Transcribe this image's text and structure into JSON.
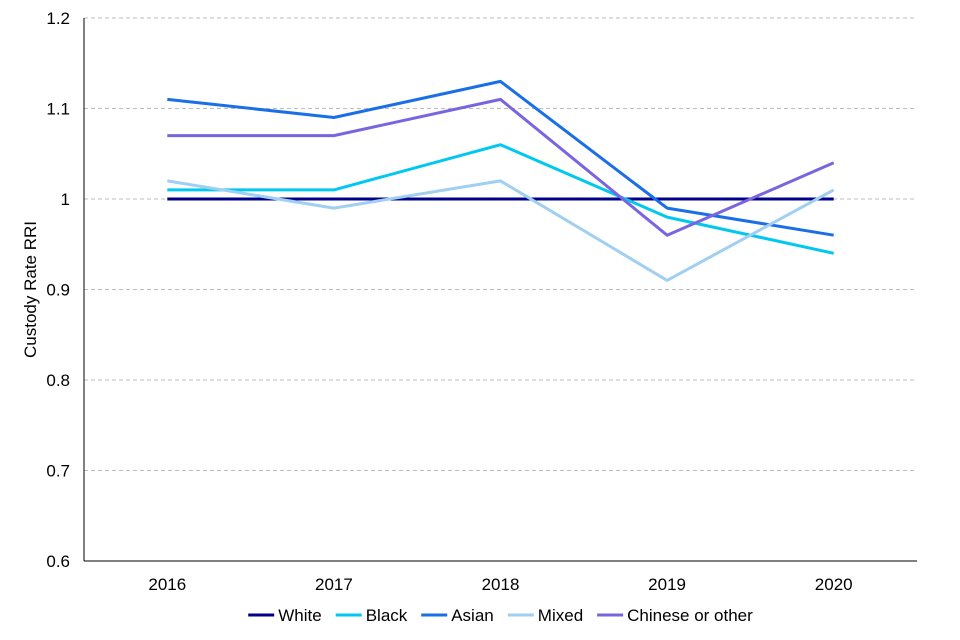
{
  "chart_data": {
    "type": "line",
    "title": "",
    "xlabel": "",
    "ylabel": "Custody Rate RRI",
    "categories": [
      "2016",
      "2017",
      "2018",
      "2019",
      "2020"
    ],
    "ylim": [
      0.6,
      1.2
    ],
    "yticks": [
      "0.6",
      "0.7",
      "0.8",
      "0.9",
      "1",
      "1.1",
      "1.2"
    ],
    "grid": "horizontal dashed",
    "legend_position": "bottom",
    "series": [
      {
        "name": "White",
        "color": "#00008B",
        "values": [
          1.0,
          1.0,
          1.0,
          1.0,
          1.0
        ]
      },
      {
        "name": "Black",
        "color": "#00C8F0",
        "values": [
          1.01,
          1.01,
          1.06,
          0.98,
          0.94
        ]
      },
      {
        "name": "Asian",
        "color": "#1A6FE8",
        "values": [
          1.11,
          1.09,
          1.13,
          0.99,
          0.96
        ]
      },
      {
        "name": "Mixed",
        "color": "#A0CFF2",
        "values": [
          1.02,
          0.99,
          1.02,
          0.91,
          1.01
        ]
      },
      {
        "name": "Chinese or other",
        "color": "#7A64E0",
        "values": [
          1.07,
          1.07,
          1.11,
          0.96,
          1.04
        ]
      }
    ]
  }
}
